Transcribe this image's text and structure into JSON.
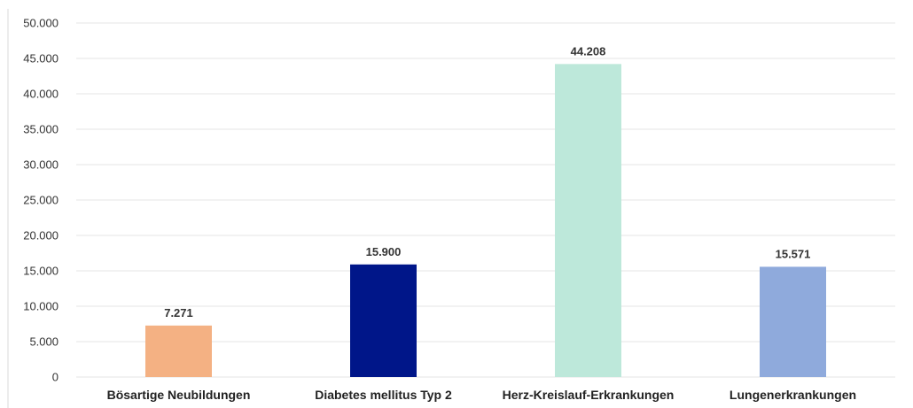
{
  "chart_data": {
    "type": "bar",
    "title": "",
    "xlabel": "",
    "ylabel": "",
    "ylim": [
      0,
      50000
    ],
    "grid": true,
    "y_ticks": [
      {
        "value": 0,
        "label": "0"
      },
      {
        "value": 5000,
        "label": "5.000"
      },
      {
        "value": 10000,
        "label": "10.000"
      },
      {
        "value": 15000,
        "label": "15.000"
      },
      {
        "value": 20000,
        "label": "20.000"
      },
      {
        "value": 25000,
        "label": "25.000"
      },
      {
        "value": 30000,
        "label": "30.000"
      },
      {
        "value": 35000,
        "label": "35.000"
      },
      {
        "value": 40000,
        "label": "40.000"
      },
      {
        "value": 45000,
        "label": "45.000"
      },
      {
        "value": 50000,
        "label": "50.000"
      }
    ],
    "categories": [
      "Bösartige Neubildungen",
      "Diabetes mellitus Typ 2",
      "Herz-Kreislauf-Erkrankungen",
      "Lungenerkrankungen"
    ],
    "values": [
      7271,
      15900,
      44208,
      15571
    ],
    "value_labels": [
      "7.271",
      "15.900",
      "44.208",
      "15.571"
    ],
    "colors": [
      "#f4b183",
      "#001689",
      "#bde8da",
      "#8faadc"
    ]
  }
}
